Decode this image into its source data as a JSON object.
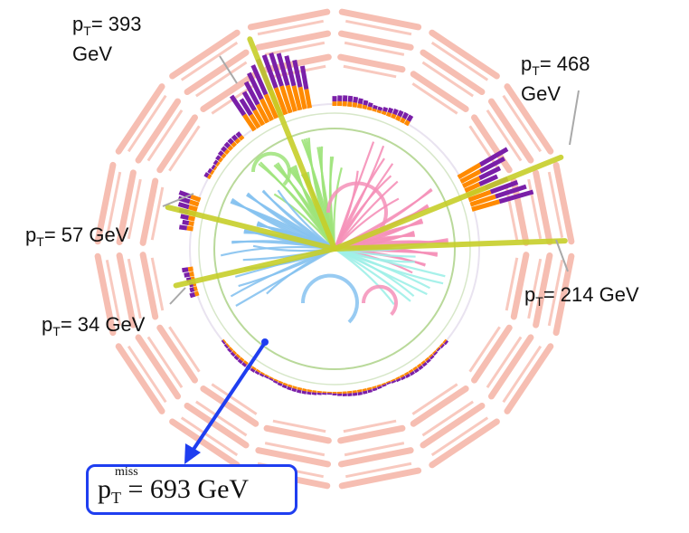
{
  "labels": {
    "jet_393": {
      "prefix": "p",
      "sub": "T",
      "text": "= 393",
      "line2": "GeV"
    },
    "jet_468": {
      "prefix": "p",
      "sub": "T",
      "text": "= 468",
      "line2": "GeV"
    },
    "jet_57": {
      "prefix": "p",
      "sub": "T",
      "text": "= 57 GeV"
    },
    "jet_34": {
      "prefix": "p",
      "sub": "T",
      "text": "= 34 GeV"
    },
    "jet_214": {
      "prefix": "p",
      "sub": "T",
      "text": "= 214 GeV"
    }
  },
  "missing": {
    "p": "p",
    "sub": "T",
    "sup": "miss",
    "text": "= 693 GeV"
  },
  "colors": {
    "muon_chambers": "#f6b8aa",
    "jet_axis": "#c7cf2a",
    "em_deposit": "#ff8a00",
    "had_deposit": "#7a1fa8",
    "met_arrow": "#1f3ef0",
    "tracks": [
      "#9de37a",
      "#86c2f0",
      "#f590b8",
      "#9ef0e8",
      "#f2b3d4"
    ]
  },
  "jets": [
    {
      "id": "jet_393",
      "phi_deg": 112
    },
    {
      "id": "jet_468",
      "phi_deg": 22
    },
    {
      "id": "jet_214",
      "phi_deg": 2
    },
    {
      "id": "jet_57",
      "phi_deg": 166
    },
    {
      "id": "jet_34",
      "phi_deg": 193
    }
  ],
  "met_phi_deg": 249
}
